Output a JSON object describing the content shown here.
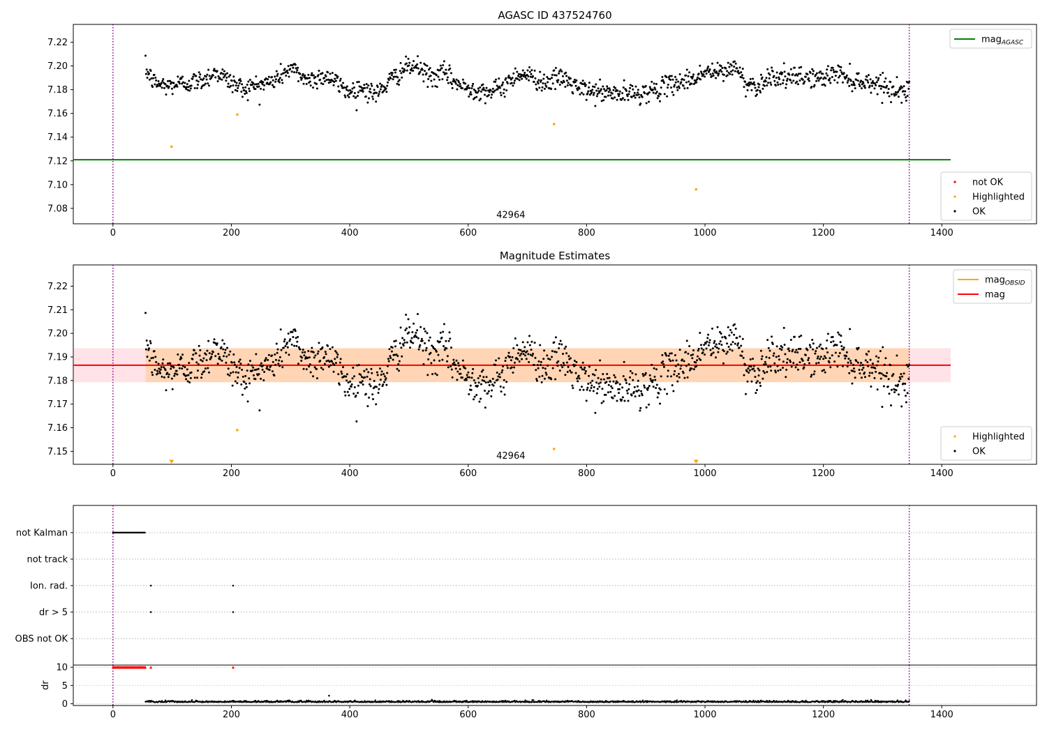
{
  "chart_data": [
    {
      "type": "scatter",
      "title": "AGASC ID 437524760",
      "xlim": [
        -67,
        1560
      ],
      "ylim": [
        7.067,
        7.235
      ],
      "xticks": [
        0,
        200,
        400,
        600,
        800,
        1000,
        1200,
        1400
      ],
      "yticks": [
        7.08,
        7.1,
        7.12,
        7.14,
        7.16,
        7.18,
        7.2,
        7.22
      ],
      "xtick_labels": [
        "0",
        "200",
        "400",
        "600",
        "800",
        "1000",
        "1200",
        "1400"
      ],
      "ytick_labels": [
        "7.08",
        "7.10",
        "7.12",
        "7.14",
        "7.16",
        "7.18",
        "7.20",
        "7.22"
      ],
      "vlines": [
        0,
        1345
      ],
      "obsid_label": {
        "text": "42964",
        "x": 672,
        "y": 7.072
      },
      "mag_agasc": {
        "value": 7.121,
        "x_range": [
          -67,
          1415
        ],
        "color": "#008000"
      },
      "highlighted": [
        [
          99,
          7.132
        ],
        [
          210,
          7.159
        ],
        [
          745,
          7.151
        ],
        [
          985,
          7.096
        ]
      ],
      "ok_series": {
        "x_start": 55,
        "x_end": 1345,
        "count": 1300,
        "anchors": [
          [
            55,
            7.197
          ],
          [
            70,
            7.186
          ],
          [
            90,
            7.183
          ],
          [
            110,
            7.185
          ],
          [
            130,
            7.186
          ],
          [
            150,
            7.188
          ],
          [
            175,
            7.195
          ],
          [
            200,
            7.186
          ],
          [
            220,
            7.181
          ],
          [
            245,
            7.184
          ],
          [
            270,
            7.187
          ],
          [
            300,
            7.198
          ],
          [
            330,
            7.188
          ],
          [
            360,
            7.192
          ],
          [
            400,
            7.178
          ],
          [
            420,
            7.182
          ],
          [
            445,
            7.176
          ],
          [
            465,
            7.186
          ],
          [
            490,
            7.197
          ],
          [
            510,
            7.2
          ],
          [
            540,
            7.19
          ],
          [
            560,
            7.194
          ],
          [
            590,
            7.182
          ],
          [
            620,
            7.18
          ],
          [
            640,
            7.178
          ],
          [
            660,
            7.183
          ],
          [
            685,
            7.194
          ],
          [
            700,
            7.192
          ],
          [
            730,
            7.186
          ],
          [
            760,
            7.19
          ],
          [
            790,
            7.18
          ],
          [
            820,
            7.178
          ],
          [
            860,
            7.176
          ],
          [
            890,
            7.177
          ],
          [
            920,
            7.18
          ],
          [
            950,
            7.186
          ],
          [
            980,
            7.189
          ],
          [
            1000,
            7.195
          ],
          [
            1030,
            7.194
          ],
          [
            1050,
            7.2
          ],
          [
            1070,
            7.185
          ],
          [
            1090,
            7.183
          ],
          [
            1110,
            7.192
          ],
          [
            1140,
            7.189
          ],
          [
            1170,
            7.191
          ],
          [
            1200,
            7.189
          ],
          [
            1220,
            7.195
          ],
          [
            1250,
            7.188
          ],
          [
            1280,
            7.186
          ],
          [
            1300,
            7.185
          ],
          [
            1320,
            7.178
          ],
          [
            1345,
            7.18
          ]
        ],
        "noise": 0.0042
      },
      "legends": [
        {
          "entries": [
            {
              "label": "mag",
              "sub": "AGASC",
              "marker": "line",
              "color": "#008000"
            }
          ]
        },
        {
          "entries": [
            {
              "label": "not OK",
              "marker": "dot",
              "color": "#ff0000"
            },
            {
              "label": "Highlighted",
              "marker": "dot",
              "color": "#ffa500"
            },
            {
              "label": "OK",
              "marker": "dot",
              "color": "#000000"
            }
          ]
        }
      ]
    },
    {
      "type": "scatter",
      "title": "Magnitude Estimates",
      "xlim": [
        -67,
        1560
      ],
      "ylim": [
        7.1445,
        7.229
      ],
      "xticks": [
        0,
        200,
        400,
        600,
        800,
        1000,
        1200,
        1400
      ],
      "yticks": [
        7.15,
        7.16,
        7.17,
        7.18,
        7.19,
        7.2,
        7.21,
        7.22
      ],
      "xtick_labels": [
        "0",
        "200",
        "400",
        "600",
        "800",
        "1000",
        "1200",
        "1400"
      ],
      "ytick_labels": [
        "7.15",
        "7.16",
        "7.17",
        "7.18",
        "7.19",
        "7.20",
        "7.21",
        "7.22"
      ],
      "vlines": [
        0,
        1345
      ],
      "obsid_label": {
        "text": "42964",
        "x": 672,
        "y": 7.1468
      },
      "mag": {
        "value": 7.1865,
        "band": [
          7.1793,
          7.1937
        ],
        "x_range": [
          -67,
          1415
        ],
        "color": "#ff0000"
      },
      "mag_obsid": {
        "value": 7.1865,
        "band": [
          7.1793,
          7.1937
        ],
        "x_range": [
          55,
          1345
        ],
        "color": "#ffa500"
      },
      "highlighted": [
        [
          210,
          7.159
        ],
        [
          745,
          7.151
        ]
      ],
      "highlighted_below": [
        99,
        985
      ],
      "ok_series_ref": 0,
      "legends": [
        {
          "entries": [
            {
              "label": "mag",
              "sub": "OBSID",
              "marker": "line",
              "color": "#ffa500"
            },
            {
              "label": "mag",
              "marker": "line",
              "color": "#ff0000"
            }
          ]
        },
        {
          "entries": [
            {
              "label": "Highlighted",
              "marker": "dot",
              "color": "#ffa500"
            },
            {
              "label": "OK",
              "marker": "dot",
              "color": "#000000"
            }
          ]
        }
      ]
    },
    {
      "type": "scatter",
      "title": "",
      "xlim": [
        -67,
        1560
      ],
      "categories": [
        "not Kalman",
        "not track",
        "Ion. rad.",
        "dr > 5",
        "OBS not OK"
      ],
      "flags": {
        "not Kalman": {
          "x_start": 0,
          "x_end": 55
        },
        "not track": {
          "points": []
        },
        "Ion. rad.": {
          "points": [
            64,
            203
          ]
        },
        "dr > 5": {
          "points": [
            64,
            203
          ]
        },
        "OBS not OK": {
          "points": []
        }
      },
      "vlines": [
        0,
        1345
      ]
    },
    {
      "type": "scatter",
      "title": "",
      "ylabel": "dr",
      "xlim": [
        -67,
        1560
      ],
      "ylim": [
        -0.5,
        10.6
      ],
      "xticks": [
        0,
        200,
        400,
        600,
        800,
        1000,
        1200,
        1400
      ],
      "yticks": [
        0,
        5,
        10
      ],
      "xtick_labels": [
        "0",
        "200",
        "400",
        "600",
        "800",
        "1000",
        "1200",
        "1400"
      ],
      "ytick_labels": [
        "0",
        "5",
        "10"
      ],
      "vlines": [
        0,
        1345
      ],
      "clipped_markers": {
        "x_start": 0,
        "x_end": 55,
        "extra": [
          64,
          203
        ],
        "value": 10,
        "color": "#ff0000"
      },
      "dr_series": {
        "x_start": 55,
        "x_end": 1345,
        "base": 0.45,
        "noise": 0.22,
        "outliers": [
          [
            365,
            2.2
          ]
        ]
      }
    }
  ]
}
